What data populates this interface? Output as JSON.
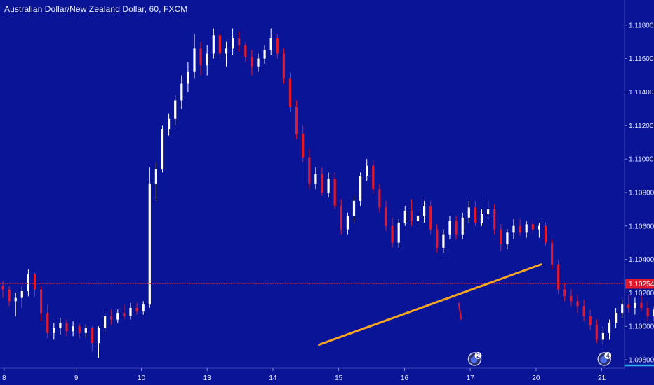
{
  "header": {
    "title": "Australian Dollar/New Zealand Dollar, 60, FXCM"
  },
  "colors": {
    "background": "#0a1496",
    "up_candle": "#ffffff",
    "down_candle": "#e0192e",
    "trendline": "#f5a623",
    "price_line": "#e0192e",
    "axis_text": "#dfe6ff",
    "bottom_accent": "#29b6f6"
  },
  "chart_data": {
    "type": "candlestick",
    "title": "Australian Dollar/New Zealand Dollar, 60, FXCM",
    "ylim": [
      1.0975,
      1.1195
    ],
    "y_ticks": [
      "1.11800",
      "1.11600",
      "1.11400",
      "1.11200",
      "1.11000",
      "1.10800",
      "1.10600",
      "1.10400",
      "1.10200",
      "1.10000",
      "1.09800"
    ],
    "x_ticks": [
      {
        "label": "8",
        "pos": 0.2
      },
      {
        "label": "9",
        "pos": 11.5
      },
      {
        "label": "10",
        "pos": 21.7
      },
      {
        "label": "13",
        "pos": 32.0
      },
      {
        "label": "14",
        "pos": 42.3
      },
      {
        "label": "15",
        "pos": 52.6
      },
      {
        "label": "16",
        "pos": 62.9
      },
      {
        "label": "17",
        "pos": 73.2
      },
      {
        "label": "20",
        "pos": 83.5
      },
      {
        "label": "21",
        "pos": 93.8
      }
    ],
    "last_price": "1.10254",
    "last_price_value": 1.10254,
    "trendline": {
      "x1": 49.5,
      "y1": 1.0989,
      "x2": 84.3,
      "y2": 1.1037
    },
    "projection": {
      "x1": 71.4,
      "y1": 1.1014,
      "x2": 71.8,
      "y2": 1.1004
    },
    "events": [
      {
        "label": "2",
        "pos": 73.9
      },
      {
        "label": "4",
        "pos": 94.2
      }
    ],
    "candles_ohlc": [
      [
        1.1024,
        1.1027,
        1.1017,
        1.1022
      ],
      [
        1.1022,
        1.1024,
        1.1012,
        1.1015
      ],
      [
        1.1015,
        1.102,
        1.1006,
        1.1017
      ],
      [
        1.1017,
        1.1024,
        1.1011,
        1.1021
      ],
      [
        1.1021,
        1.1034,
        1.1018,
        1.1031
      ],
      [
        1.1031,
        1.1032,
        1.1018,
        1.1022
      ],
      [
        1.1022,
        1.1024,
        1.1003,
        1.1008
      ],
      [
        1.1008,
        1.1013,
        1.0993,
        1.0996
      ],
      [
        1.0996,
        1.1002,
        1.0992,
        1.0999
      ],
      [
        1.0999,
        1.1005,
        1.0995,
        1.1002
      ],
      [
        1.1002,
        1.1004,
        1.0994,
        1.0997
      ],
      [
        1.0997,
        1.1003,
        1.0994,
        1.1
      ],
      [
        1.1,
        1.1002,
        1.0993,
        1.0996
      ],
      [
        1.0996,
        1.1001,
        1.0993,
        1.0999
      ],
      [
        1.0999,
        1.1,
        1.0985,
        1.099
      ],
      [
        1.099,
        1.1,
        1.0981,
        1.0999
      ],
      [
        1.0999,
        1.1008,
        1.0996,
        1.1006
      ],
      [
        1.1006,
        1.101,
        1.1001,
        1.1004
      ],
      [
        1.1004,
        1.101,
        1.1002,
        1.1008
      ],
      [
        1.1008,
        1.1013,
        1.1004,
        1.1006
      ],
      [
        1.1006,
        1.1014,
        1.1004,
        1.1011
      ],
      [
        1.1011,
        1.1014,
        1.1007,
        1.1009
      ],
      [
        1.1009,
        1.1015,
        1.1007,
        1.1013
      ],
      [
        1.1013,
        1.1095,
        1.1011,
        1.1085
      ],
      [
        1.1085,
        1.1098,
        1.1075,
        1.1094
      ],
      [
        1.1094,
        1.112,
        1.1092,
        1.1118
      ],
      [
        1.1118,
        1.1127,
        1.1114,
        1.1124
      ],
      [
        1.1124,
        1.1138,
        1.112,
        1.1135
      ],
      [
        1.1135,
        1.115,
        1.113,
        1.1145
      ],
      [
        1.1145,
        1.1158,
        1.114,
        1.1152
      ],
      [
        1.1152,
        1.1175,
        1.1148,
        1.1166
      ],
      [
        1.1166,
        1.117,
        1.115,
        1.1156
      ],
      [
        1.1156,
        1.1168,
        1.115,
        1.1163
      ],
      [
        1.1163,
        1.1178,
        1.116,
        1.1174
      ],
      [
        1.1174,
        1.1177,
        1.116,
        1.1163
      ],
      [
        1.1163,
        1.117,
        1.1155,
        1.1166
      ],
      [
        1.1166,
        1.1178,
        1.1162,
        1.1172
      ],
      [
        1.1172,
        1.1176,
        1.1164,
        1.1168
      ],
      [
        1.1168,
        1.117,
        1.1158,
        1.1161
      ],
      [
        1.1161,
        1.1165,
        1.115,
        1.1155
      ],
      [
        1.1155,
        1.1163,
        1.1152,
        1.116
      ],
      [
        1.116,
        1.1168,
        1.1157,
        1.1165
      ],
      [
        1.1165,
        1.1178,
        1.1162,
        1.1172
      ],
      [
        1.1172,
        1.1175,
        1.116,
        1.1163
      ],
      [
        1.1163,
        1.1166,
        1.1145,
        1.1148
      ],
      [
        1.1148,
        1.1152,
        1.1128,
        1.1131
      ],
      [
        1.1131,
        1.1135,
        1.1112,
        1.1115
      ],
      [
        1.1115,
        1.112,
        1.1098,
        1.1101
      ],
      [
        1.1101,
        1.1106,
        1.1082,
        1.1085
      ],
      [
        1.1085,
        1.1095,
        1.1082,
        1.1091
      ],
      [
        1.1091,
        1.1095,
        1.1078,
        1.108
      ],
      [
        1.108,
        1.1092,
        1.1077,
        1.1088
      ],
      [
        1.1088,
        1.1092,
        1.107,
        1.1072
      ],
      [
        1.1072,
        1.1076,
        1.1055,
        1.1058
      ],
      [
        1.1058,
        1.1068,
        1.1055,
        1.1066
      ],
      [
        1.1066,
        1.1078,
        1.1062,
        1.1075
      ],
      [
        1.1075,
        1.1092,
        1.1072,
        1.109
      ],
      [
        1.109,
        1.11,
        1.1087,
        1.1096
      ],
      [
        1.1096,
        1.1099,
        1.1079,
        1.1082
      ],
      [
        1.1082,
        1.1085,
        1.1068,
        1.1071
      ],
      [
        1.1071,
        1.1075,
        1.1057,
        1.106
      ],
      [
        1.106,
        1.1065,
        1.1047,
        1.105
      ],
      [
        1.105,
        1.1064,
        1.1047,
        1.1062
      ],
      [
        1.1062,
        1.1072,
        1.106,
        1.1069
      ],
      [
        1.1069,
        1.1076,
        1.106,
        1.1063
      ],
      [
        1.1063,
        1.107,
        1.1058,
        1.1066
      ],
      [
        1.1066,
        1.1075,
        1.1062,
        1.1072
      ],
      [
        1.1072,
        1.1075,
        1.1055,
        1.1058
      ],
      [
        1.1058,
        1.1061,
        1.1044,
        1.1047
      ],
      [
        1.1047,
        1.1058,
        1.1044,
        1.1055
      ],
      [
        1.1055,
        1.1066,
        1.1052,
        1.1063
      ],
      [
        1.1063,
        1.1066,
        1.1052,
        1.1055
      ],
      [
        1.1055,
        1.1068,
        1.1052,
        1.1065
      ],
      [
        1.1065,
        1.1075,
        1.1062,
        1.1071
      ],
      [
        1.1071,
        1.1075,
        1.106,
        1.1062
      ],
      [
        1.1062,
        1.107,
        1.106,
        1.1067
      ],
      [
        1.1067,
        1.1075,
        1.1064,
        1.107
      ],
      [
        1.107,
        1.1073,
        1.1055,
        1.1058
      ],
      [
        1.1058,
        1.1061,
        1.1045,
        1.1049
      ],
      [
        1.1049,
        1.1058,
        1.1046,
        1.1056
      ],
      [
        1.1056,
        1.1064,
        1.1052,
        1.106
      ],
      [
        1.106,
        1.1064,
        1.1054,
        1.1056
      ],
      [
        1.1056,
        1.1063,
        1.1053,
        1.1061
      ],
      [
        1.1061,
        1.1064,
        1.1055,
        1.1058
      ],
      [
        1.1058,
        1.1062,
        1.1053,
        1.106
      ],
      [
        1.106,
        1.1062,
        1.1048,
        1.105
      ],
      [
        1.105,
        1.1052,
        1.1034,
        1.1037
      ],
      [
        1.1037,
        1.104,
        1.1019,
        1.1022
      ],
      [
        1.1022,
        1.1026,
        1.1015,
        1.1018
      ],
      [
        1.1018,
        1.1022,
        1.1012,
        1.1015
      ],
      [
        1.1015,
        1.1019,
        1.1008,
        1.1012
      ],
      [
        1.1012,
        1.1016,
        1.1003,
        1.1006
      ],
      [
        1.1006,
        1.101,
        1.0998,
        1.1001
      ],
      [
        1.1001,
        1.1004,
        1.099,
        1.0992
      ],
      [
        1.0992,
        1.1,
        1.0988,
        1.0996
      ],
      [
        1.0996,
        1.1004,
        1.0992,
        1.1002
      ],
      [
        1.1002,
        1.1011,
        1.0999,
        1.1008
      ],
      [
        1.1008,
        1.1016,
        1.1005,
        1.1013
      ],
      [
        1.1013,
        1.1019,
        1.1008,
        1.1011
      ],
      [
        1.1011,
        1.1017,
        1.1007,
        1.1014
      ],
      [
        1.1014,
        1.1019,
        1.1009,
        1.1011
      ],
      [
        1.1011,
        1.1015,
        1.1003,
        1.1006
      ],
      [
        1.1006,
        1.1012,
        1.1003,
        1.101
      ],
      [
        1.101,
        1.1014,
        1.0998,
        1.1
      ],
      [
        1.1,
        1.101,
        1.0997,
        1.1008
      ],
      [
        1.1008,
        1.1026,
        1.1005,
        1.1022
      ],
      [
        1.1022,
        1.1032,
        1.1018,
        1.1028
      ],
      [
        1.1028,
        1.1032,
        1.1016,
        1.1019
      ],
      [
        1.1019,
        1.1024,
        1.1012,
        1.1015
      ],
      [
        1.1015,
        1.1021,
        1.1004,
        1.1017
      ],
      [
        1.1017,
        1.1025,
        1.1013,
        1.1022
      ],
      [
        1.1022,
        1.103,
        1.1018,
        1.1027
      ],
      [
        1.1027,
        1.103,
        1.1018,
        1.1021
      ],
      [
        1.1021,
        1.1028,
        1.1018,
        1.1026
      ],
      [
        1.1026,
        1.1029,
        1.102,
        1.1023
      ],
      [
        1.1023,
        1.1028,
        1.1018,
        1.1026
      ],
      [
        1.1026,
        1.1029,
        1.1011,
        1.1013
      ],
      [
        1.1013,
        1.1048,
        1.0993,
        1.1038
      ],
      [
        1.1038,
        1.1048,
        1.1034,
        1.1043
      ],
      [
        1.1043,
        1.1046,
        1.1032,
        1.1035
      ],
      [
        1.1035,
        1.1043,
        1.1032,
        1.1041
      ],
      [
        1.1041,
        1.1046,
        1.1031,
        1.1033
      ],
      [
        1.1033,
        1.1042,
        1.103,
        1.104
      ],
      [
        1.104,
        1.1047,
        1.1036,
        1.1044
      ],
      [
        1.1044,
        1.1046,
        1.1032,
        1.1035
      ],
      [
        1.1035,
        1.1037,
        1.1015,
        1.1018
      ],
      [
        1.1018,
        1.1027,
        1.1015,
        1.1024
      ],
      [
        1.1024,
        1.1026,
        1.1019,
        1.1022
      ]
    ]
  }
}
